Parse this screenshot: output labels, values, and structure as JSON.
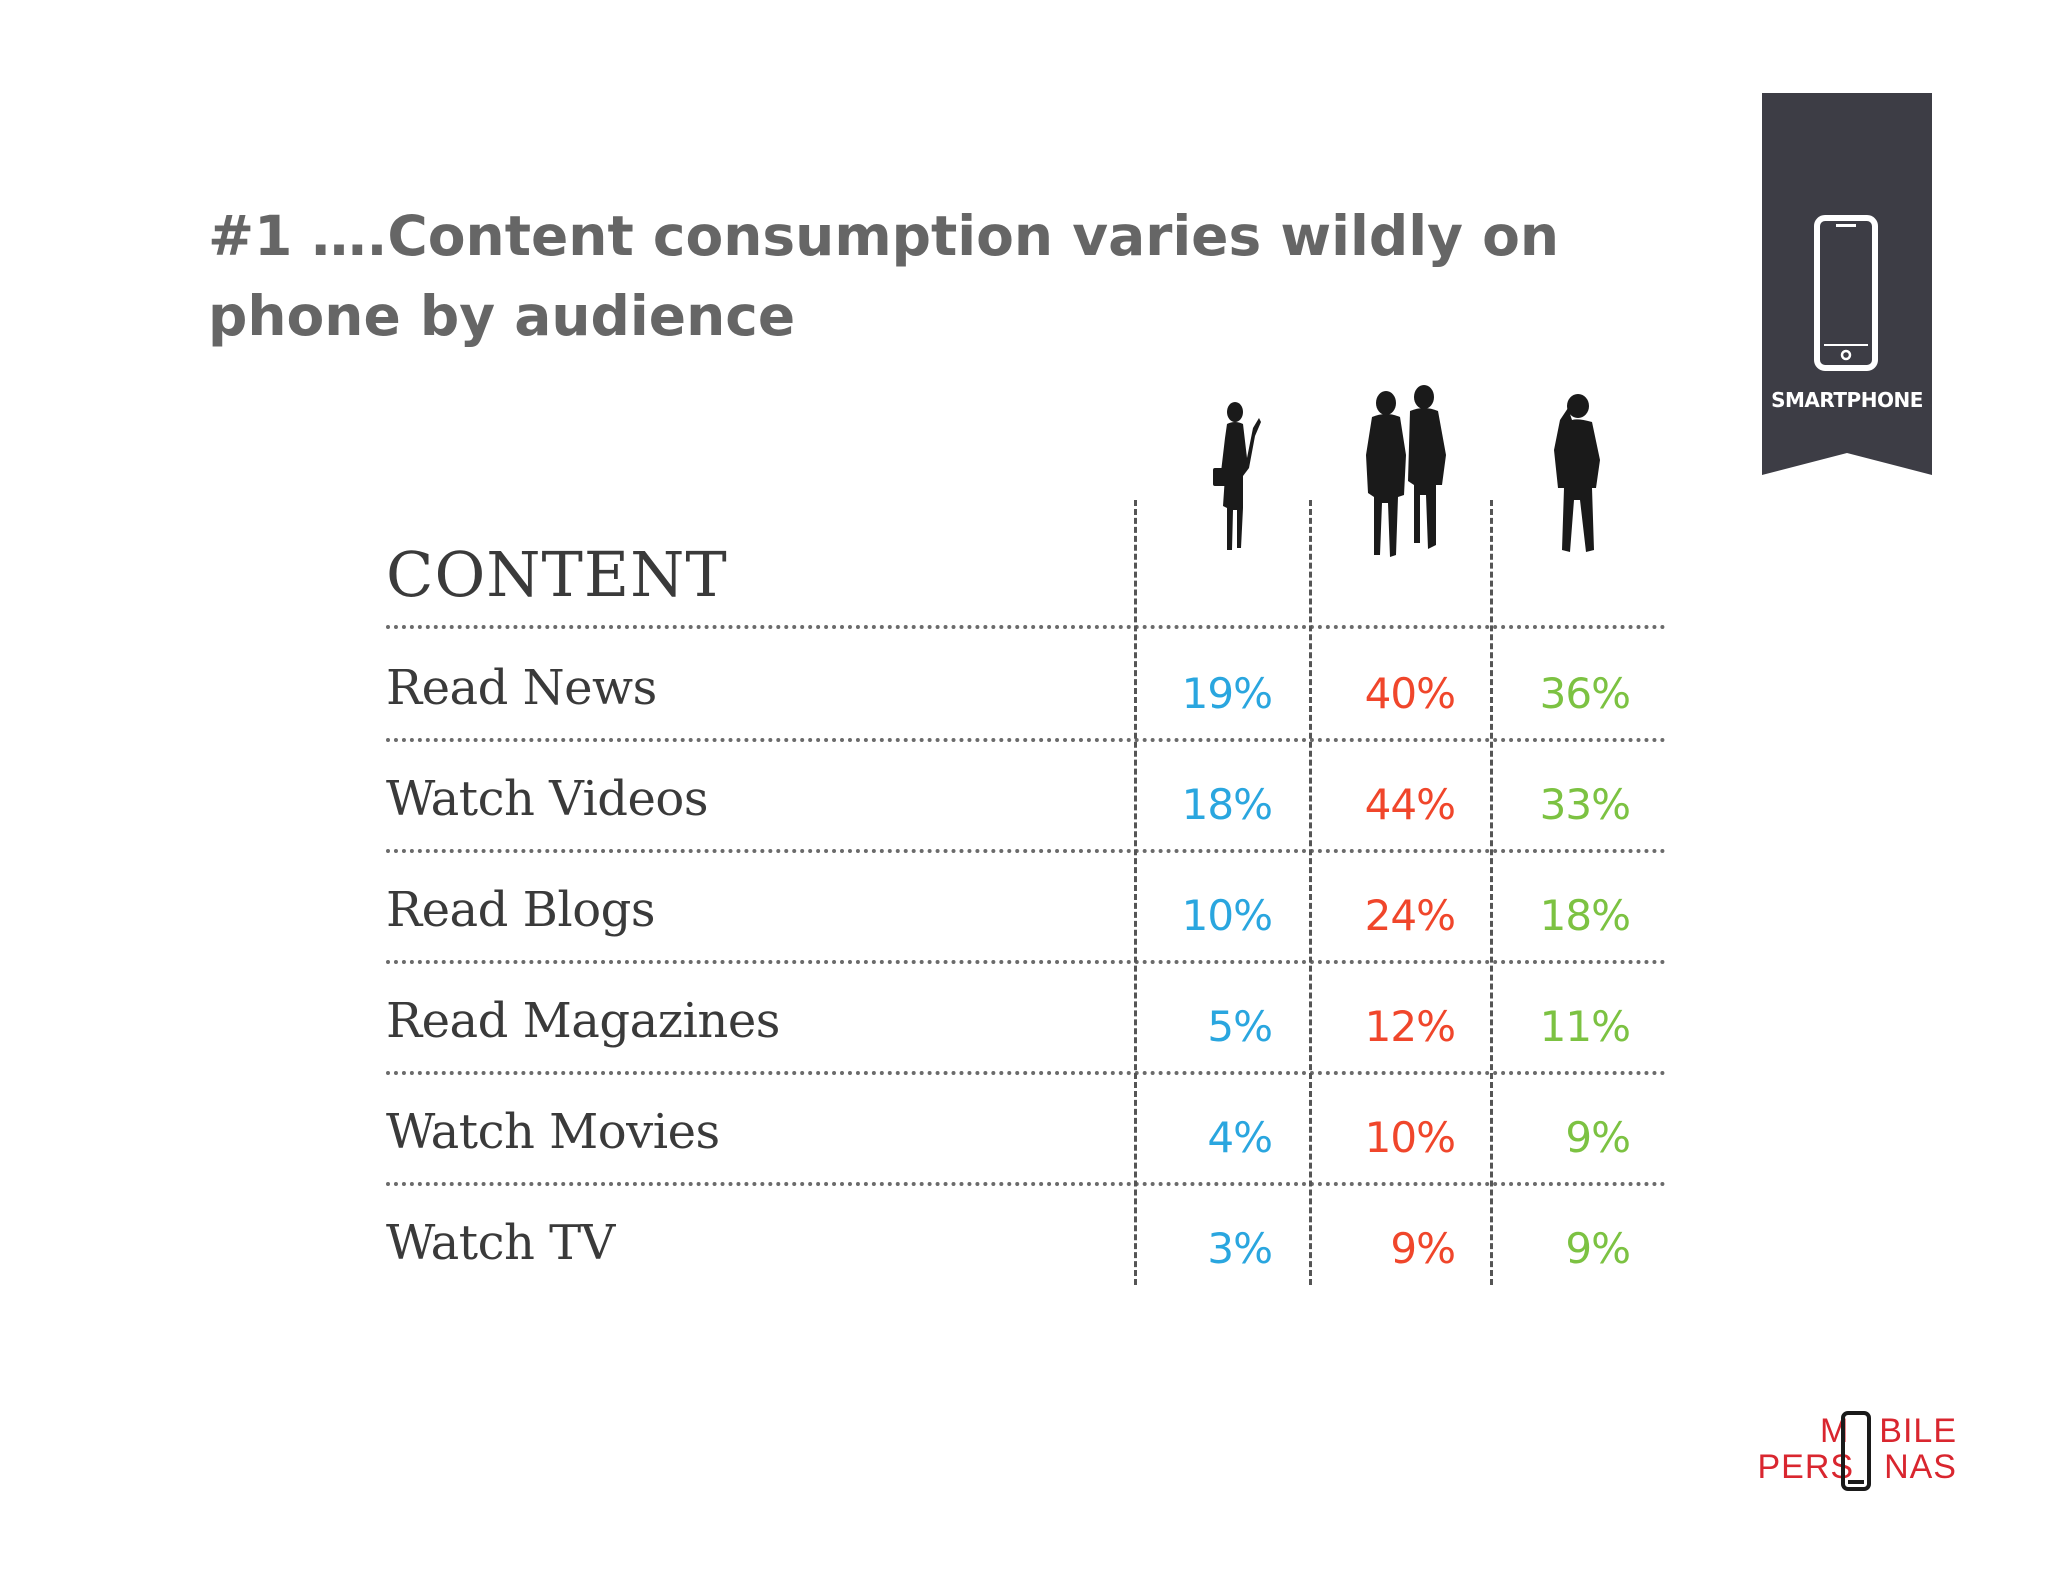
{
  "title": "#1 ….Content consumption varies wildly on phone by audience",
  "badge": {
    "label": "SMARTPHONE",
    "icon": "smartphone-icon"
  },
  "chart_data": {
    "type": "table",
    "title": "",
    "row_header": "CONTENT",
    "rows": [
      "Read News",
      "Watch Videos",
      "Read Blogs",
      "Read Magazines",
      "Watch Movies",
      "Watch TV"
    ],
    "series": [
      {
        "icon": "woman-with-phone-icon",
        "color": "#2aa6df",
        "values": [
          "19%",
          "18%",
          "10%",
          "5%",
          "4%",
          "3%"
        ]
      },
      {
        "icon": "couple-icon",
        "color": "#f0462b",
        "values": [
          "40%",
          "44%",
          "24%",
          "12%",
          "10%",
          "9%"
        ]
      },
      {
        "icon": "man-on-phone-icon",
        "color": "#7cc242",
        "values": [
          "36%",
          "33%",
          "18%",
          "11%",
          "9%",
          "9%"
        ]
      }
    ]
  },
  "logo": {
    "line1_a": "M",
    "line1_b": "BILE",
    "line2_a": "PERS",
    "line2_b": "NAS",
    "color": "#d9262f"
  }
}
